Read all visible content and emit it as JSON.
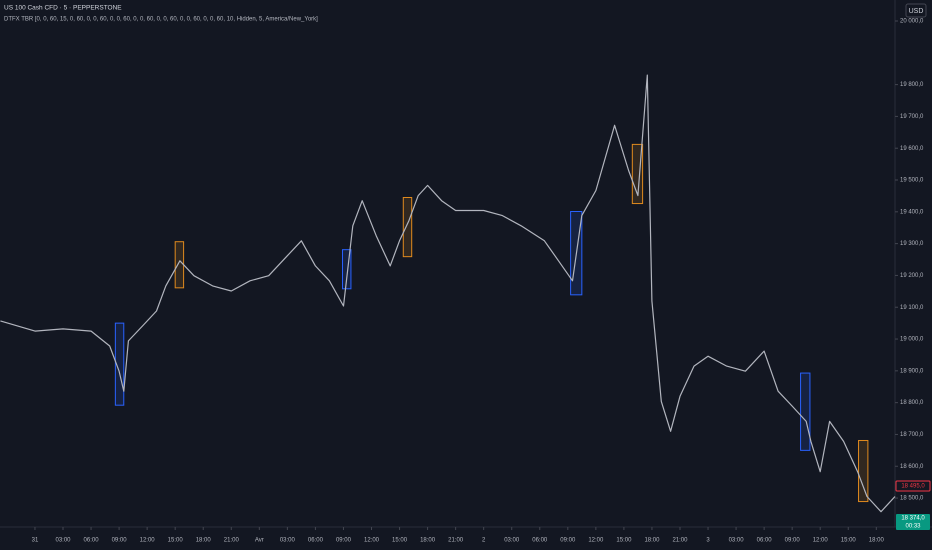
{
  "chart_data": {
    "type": "line",
    "title": "US 100 Cash CFD · 5 · PEPPERSTONE",
    "subtitle": "DTFX TBR [0, 0, 60, 15, 0, 60, 0, 0, 60, 0, 0, 60, 0, 0, 60, 0, 0, 60, 0, 0, 60, 0, 0, 60, 10, Hidden, 5, America/New_York]",
    "x": [
      -3.7,
      0,
      3,
      6,
      8,
      9,
      9.5,
      10,
      11.5,
      13,
      14,
      15.5,
      17,
      19,
      21,
      23,
      25,
      27,
      28.5,
      30,
      31.5,
      33,
      34,
      35,
      36.5,
      38,
      39,
      40,
      41,
      42,
      43.5,
      45,
      48,
      50,
      52,
      54.5,
      56,
      57.5,
      58.5,
      60,
      62,
      63.5,
      64.5,
      65.5,
      66,
      66.5,
      67,
      68,
      69,
      70.5,
      72,
      74,
      76,
      78,
      79.5,
      81,
      82.5,
      83,
      84,
      85,
      86.5,
      88,
      89,
      90.5,
      92
    ],
    "values": [
      19057,
      19025,
      19032,
      19025,
      18978,
      18899,
      18836,
      18994,
      19041,
      19088,
      19167,
      19246,
      19199,
      19167,
      19151,
      19183,
      19199,
      19262,
      19309,
      19230,
      19183,
      19104,
      19356,
      19435,
      19325,
      19230,
      19309,
      19372,
      19451,
      19483,
      19435,
      19404,
      19404,
      19388,
      19356,
      19309,
      19246,
      19183,
      19388,
      19467,
      19672,
      19530,
      19451,
      19830,
      19120,
      18962,
      18804,
      18710,
      18820,
      18915,
      18946,
      18915,
      18899,
      18962,
      18836,
      18789,
      18741,
      18678,
      18583,
      18741,
      18678,
      18583,
      18505,
      18457,
      18505
    ],
    "color": "#b2b5be",
    "xlim": [
      -3.74,
      92
    ],
    "xticks": [
      {
        "value": 0,
        "label": "31"
      },
      {
        "value": 3,
        "label": "03:00"
      },
      {
        "value": 6,
        "label": "06:00"
      },
      {
        "value": 9,
        "label": "09:00"
      },
      {
        "value": 12,
        "label": "12:00"
      },
      {
        "value": 15,
        "label": "15:00"
      },
      {
        "value": 18,
        "label": "18:00"
      },
      {
        "value": 21,
        "label": "21:00"
      },
      {
        "value": 24,
        "label": "Avr"
      },
      {
        "value": 27,
        "label": "03:00"
      },
      {
        "value": 30,
        "label": "06:00"
      },
      {
        "value": 33,
        "label": "09:00"
      },
      {
        "value": 36,
        "label": "12:00"
      },
      {
        "value": 39,
        "label": "15:00"
      },
      {
        "value": 42,
        "label": "18:00"
      },
      {
        "value": 45,
        "label": "21:00"
      },
      {
        "value": 48,
        "label": "2"
      },
      {
        "value": 51,
        "label": "03:00"
      },
      {
        "value": 54,
        "label": "06:00"
      },
      {
        "value": 57,
        "label": "09:00"
      },
      {
        "value": 60,
        "label": "12:00"
      },
      {
        "value": 63,
        "label": "15:00"
      },
      {
        "value": 66,
        "label": "18:00"
      },
      {
        "value": 69,
        "label": "21:00"
      },
      {
        "value": 72,
        "label": "3"
      },
      {
        "value": 75,
        "label": "03:00"
      },
      {
        "value": 78,
        "label": "06:00"
      },
      {
        "value": 81,
        "label": "09:00"
      },
      {
        "value": 84,
        "label": "12:00"
      },
      {
        "value": 87,
        "label": "15:00"
      },
      {
        "value": 90,
        "label": "18:00"
      }
    ],
    "ylim": [
      18409,
      20066
    ],
    "yticks": [
      {
        "value": 20000,
        "label": "20 000,0"
      },
      {
        "value": 19800,
        "label": "19 800,0"
      },
      {
        "value": 19700,
        "label": "19 700,0"
      },
      {
        "value": 19600,
        "label": "19 600,0"
      },
      {
        "value": 19500,
        "label": "19 500,0"
      },
      {
        "value": 19400,
        "label": "19 400,0"
      },
      {
        "value": 19300,
        "label": "19 300,0"
      },
      {
        "value": 19200,
        "label": "19 200,0"
      },
      {
        "value": 19100,
        "label": "19 100,0"
      },
      {
        "value": 19000,
        "label": "19 000,0"
      },
      {
        "value": 18900,
        "label": "18 900,0"
      },
      {
        "value": 18800,
        "label": "18 800,0"
      },
      {
        "value": 18700,
        "label": "18 700,0"
      },
      {
        "value": 18600,
        "label": "18 600,0"
      },
      {
        "value": 18500,
        "label": "18 500,0"
      }
    ],
    "boxes": [
      {
        "x": [
          8.6,
          9.5
        ],
        "y": [
          18792,
          19050
        ],
        "color": "#2962ff"
      },
      {
        "x": [
          15.0,
          15.9
        ],
        "y": [
          19161,
          19306
        ],
        "color": "#e08a1e"
      },
      {
        "x": [
          32.9,
          33.8
        ],
        "y": [
          19158,
          19281
        ],
        "color": "#2962ff"
      },
      {
        "x": [
          39.4,
          40.3
        ],
        "y": [
          19259,
          19445
        ],
        "color": "#e08a1e"
      },
      {
        "x": [
          57.3,
          58.5
        ],
        "y": [
          19139,
          19401
        ],
        "color": "#2962ff"
      },
      {
        "x": [
          63.9,
          65.0
        ],
        "y": [
          19426,
          19612
        ],
        "color": "#e08a1e"
      },
      {
        "x": [
          81.9,
          82.9
        ],
        "y": [
          18650,
          18893
        ],
        "color": "#2962ff"
      },
      {
        "x": [
          88.1,
          89.1
        ],
        "y": [
          18489,
          18681
        ],
        "color": "#e08a1e"
      }
    ]
  },
  "ui": {
    "currency": "USD",
    "marker_label": "18 495,0",
    "last_price_label": "18 374,0",
    "countdown": "00:33"
  }
}
